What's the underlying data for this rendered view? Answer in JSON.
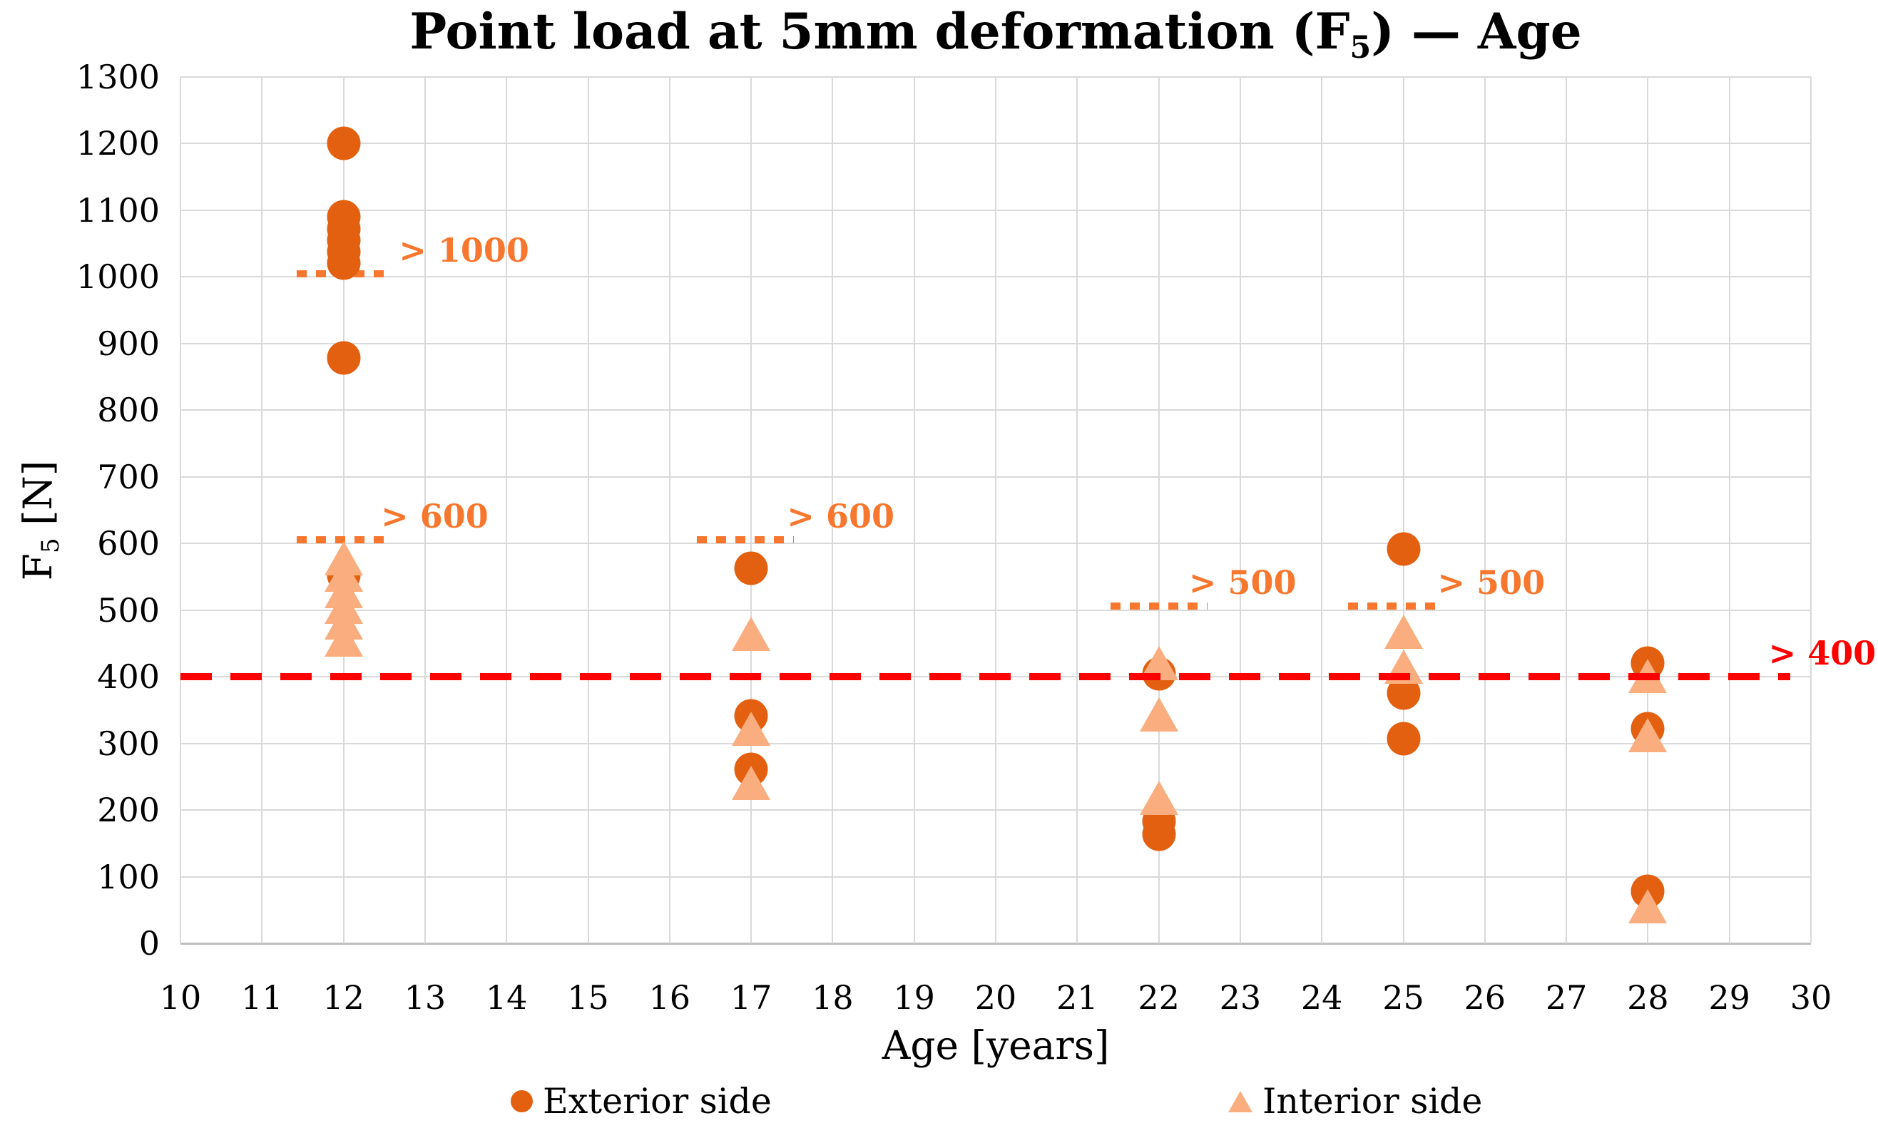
{
  "chart_data": {
    "type": "scatter",
    "title_parts": {
      "pre": "Point load at 5mm deformation (F",
      "sub": "5",
      "post": ") — Age"
    },
    "xlabel": "Age [years]",
    "ylabel_parts": {
      "pre": "F",
      "sub": "5",
      "post": " [N]"
    },
    "xlim": [
      10,
      30
    ],
    "ylim": [
      0,
      1300
    ],
    "xticks": [
      10,
      11,
      12,
      13,
      14,
      15,
      16,
      17,
      18,
      19,
      20,
      21,
      22,
      23,
      24,
      25,
      26,
      27,
      28,
      29,
      30
    ],
    "yticks": [
      0,
      100,
      200,
      300,
      400,
      500,
      600,
      700,
      800,
      900,
      1000,
      1100,
      1200,
      1300
    ],
    "grid": true,
    "legend_position": "bottom",
    "colors": {
      "exterior": "#e2600f",
      "interior": "#faad7e",
      "threshold_orange": "#f8772e",
      "threshold_red": "#ff0000",
      "gridline": "#d9d9d9",
      "axisline": "#bfbfbf"
    },
    "series": [
      {
        "name": "Exterior side",
        "marker": "circle",
        "color": "#e2600f",
        "points": [
          {
            "x": 12,
            "y": 1200
          },
          {
            "x": 12,
            "y": 1090
          },
          {
            "x": 12,
            "y": 1072
          },
          {
            "x": 12,
            "y": 1055
          },
          {
            "x": 12,
            "y": 1038
          },
          {
            "x": 12,
            "y": 1021
          },
          {
            "x": 12,
            "y": 878
          },
          {
            "x": 12,
            "y": 552
          },
          {
            "x": 17,
            "y": 563
          },
          {
            "x": 17,
            "y": 341
          },
          {
            "x": 17,
            "y": 261
          },
          {
            "x": 22,
            "y": 404
          },
          {
            "x": 22,
            "y": 183
          },
          {
            "x": 22,
            "y": 164
          },
          {
            "x": 25,
            "y": 592
          },
          {
            "x": 25,
            "y": 376
          },
          {
            "x": 25,
            "y": 307
          },
          {
            "x": 28,
            "y": 421
          },
          {
            "x": 28,
            "y": 322
          },
          {
            "x": 28,
            "y": 78
          }
        ]
      },
      {
        "name": "Interior side",
        "marker": "triangle",
        "color": "#faad7e",
        "points": [
          {
            "x": 12,
            "y": 578
          },
          {
            "x": 12,
            "y": 553
          },
          {
            "x": 12,
            "y": 529
          },
          {
            "x": 12,
            "y": 505
          },
          {
            "x": 12,
            "y": 481
          },
          {
            "x": 12,
            "y": 456
          },
          {
            "x": 17,
            "y": 464
          },
          {
            "x": 17,
            "y": 322
          },
          {
            "x": 17,
            "y": 241
          },
          {
            "x": 22,
            "y": 421
          },
          {
            "x": 22,
            "y": 343
          },
          {
            "x": 22,
            "y": 218
          },
          {
            "x": 25,
            "y": 468
          },
          {
            "x": 25,
            "y": 415
          },
          {
            "x": 28,
            "y": 401
          },
          {
            "x": 28,
            "y": 312
          },
          {
            "x": 28,
            "y": 56
          }
        ]
      }
    ],
    "thresholds": [
      {
        "label": "> 1000",
        "value": 1005,
        "x_from": 11.43,
        "x_to": 12.6,
        "label_x": 12.68,
        "style": "dotted",
        "color": "#f8772e"
      },
      {
        "label": "> 600",
        "value": 606,
        "x_from": 11.43,
        "x_to": 12.6,
        "label_x": 12.46,
        "style": "dotted",
        "color": "#f8772e"
      },
      {
        "label": "> 600",
        "value": 606,
        "x_from": 16.33,
        "x_to": 17.52,
        "label_x": 17.44,
        "style": "dotted",
        "color": "#f8772e"
      },
      {
        "label": "> 500",
        "value": 506,
        "x_from": 21.41,
        "x_to": 22.6,
        "label_x": 22.37,
        "style": "dotted",
        "color": "#f8772e"
      },
      {
        "label": "> 500",
        "value": 506,
        "x_from": 24.32,
        "x_to": 25.48,
        "label_x": 25.42,
        "style": "dotted",
        "color": "#f8772e"
      },
      {
        "label": "> 400",
        "value": 400,
        "x_from": 10.0,
        "x_to": 29.75,
        "label_x": 29.48,
        "style": "dashed",
        "color": "#ff0000"
      }
    ]
  }
}
